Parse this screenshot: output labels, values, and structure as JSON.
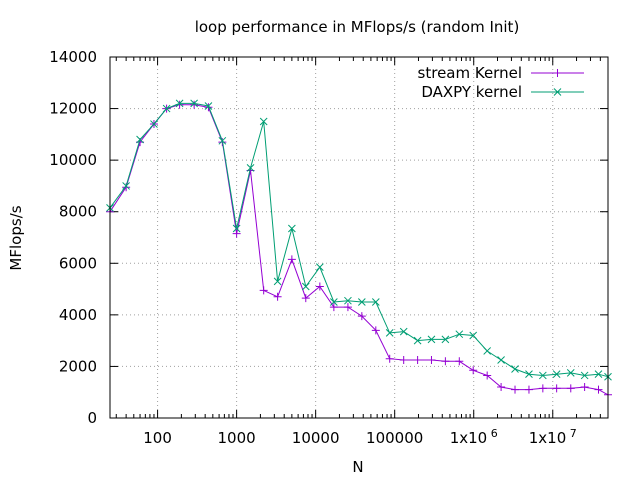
{
  "chart_data": {
    "type": "line",
    "title": "loop performance in MFlops/s (random Init)",
    "xlabel": "N",
    "ylabel": "MFlops/s",
    "x_scale": "log",
    "xlim": [
      25,
      50000000
    ],
    "ylim": [
      0,
      14000
    ],
    "grid": true,
    "legend_position": "top-right",
    "x_ticks": [
      {
        "value": 100,
        "label": "100"
      },
      {
        "value": 1000,
        "label": "1000"
      },
      {
        "value": 10000,
        "label": "10000"
      },
      {
        "value": 100000,
        "label": "100000"
      },
      {
        "value": 1000000,
        "label": "1x10",
        "exp": "6"
      },
      {
        "value": 10000000,
        "label": "1x10",
        "exp": "7"
      }
    ],
    "y_ticks": [
      0,
      2000,
      4000,
      6000,
      8000,
      10000,
      12000,
      14000
    ],
    "series": [
      {
        "name": "stream Kernel",
        "color": "#9400d3",
        "marker": "plus",
        "x": [
          25,
          40,
          60,
          90,
          130,
          190,
          290,
          440,
          660,
          1000,
          1500,
          2200,
          3300,
          5000,
          7500,
          11300,
          17000,
          25600,
          38400,
          57700,
          86500,
          130000,
          195000,
          292000,
          438000,
          657000,
          985000,
          1480000,
          2220000,
          3330000,
          5000000,
          7490000,
          11200000,
          16900000,
          25300000,
          37900000,
          50000000
        ],
        "values": [
          8000,
          8950,
          10700,
          11400,
          12000,
          12150,
          12150,
          12050,
          10700,
          7150,
          9600,
          4950,
          4700,
          6150,
          4650,
          5100,
          4300,
          4300,
          3950,
          3400,
          2300,
          2250,
          2250,
          2250,
          2200,
          2200,
          1850,
          1650,
          1200,
          1100,
          1100,
          1150,
          1150,
          1150,
          1200,
          1100,
          900
        ]
      },
      {
        "name": "DAXPY kernel",
        "color": "#009e73",
        "marker": "cross",
        "x": [
          25,
          40,
          60,
          90,
          130,
          190,
          290,
          440,
          660,
          1000,
          1500,
          2200,
          3300,
          5000,
          7500,
          11300,
          17000,
          25600,
          38400,
          57700,
          86500,
          130000,
          195000,
          292000,
          438000,
          657000,
          985000,
          1480000,
          2220000,
          3330000,
          5000000,
          7490000,
          11200000,
          16900000,
          25300000,
          37900000,
          50000000
        ],
        "values": [
          8150,
          9000,
          10800,
          11400,
          12000,
          12200,
          12200,
          12100,
          10750,
          7350,
          9700,
          11500,
          5300,
          7350,
          5100,
          5850,
          4500,
          4550,
          4500,
          4500,
          3300,
          3350,
          3000,
          3050,
          3050,
          3250,
          3200,
          2600,
          2250,
          1900,
          1700,
          1650,
          1700,
          1750,
          1650,
          1700,
          1600
        ]
      }
    ]
  }
}
